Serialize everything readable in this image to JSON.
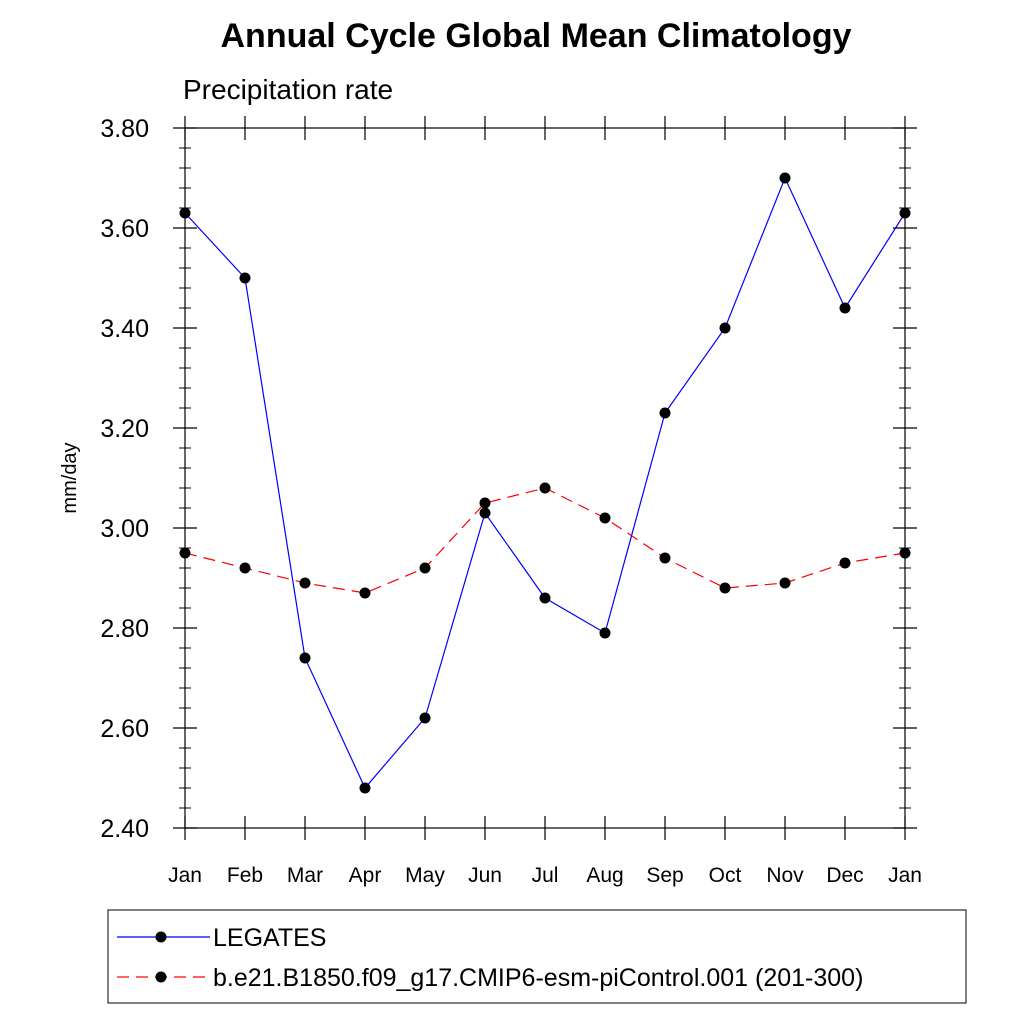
{
  "chart_data": {
    "type": "line",
    "title": "Annual Cycle Global Mean Climatology",
    "subtitle": "Precipitation rate",
    "xlabel": "",
    "ylabel": "mm/day",
    "categories": [
      "Jan",
      "Feb",
      "Mar",
      "Apr",
      "May",
      "Jun",
      "Jul",
      "Aug",
      "Sep",
      "Oct",
      "Nov",
      "Dec",
      "Jan"
    ],
    "ylim": [
      2.4,
      3.8
    ],
    "yticks": [
      "2.40",
      "2.60",
      "2.80",
      "3.00",
      "3.20",
      "3.40",
      "3.60",
      "3.80"
    ],
    "grid": false,
    "legend_position": "bottom",
    "series": [
      {
        "name": "LEGATES",
        "color": "#0000ff",
        "dash": "solid",
        "values": [
          3.63,
          3.5,
          2.74,
          2.48,
          2.62,
          3.03,
          2.86,
          2.79,
          3.23,
          3.4,
          3.7,
          3.44,
          3.63
        ]
      },
      {
        "name": "b.e21.B1850.f09_g17.CMIP6-esm-piControl.001 (201-300)",
        "color": "#ff0000",
        "dash": "dashed",
        "values": [
          2.95,
          2.92,
          2.89,
          2.87,
          2.92,
          3.05,
          3.08,
          3.02,
          2.94,
          2.88,
          2.89,
          2.93,
          2.95
        ]
      }
    ]
  }
}
